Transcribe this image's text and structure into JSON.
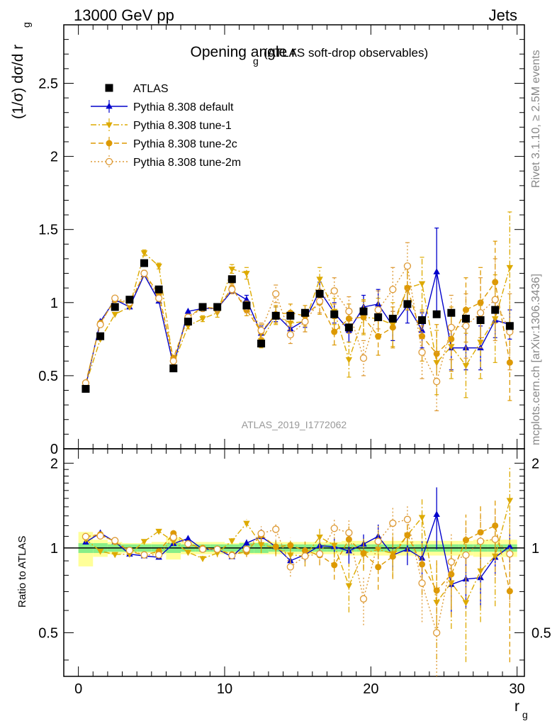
{
  "header": {
    "left": "13000 GeV pp",
    "right": "Jets"
  },
  "side": {
    "top": "Rivet 3.1.10, ≥ 2.5M events",
    "bottom": "mcplots.cern.ch [arXiv:1306.3436]"
  },
  "chart_data": {
    "type": "scatter",
    "title": "Opening angle r",
    "title_sub": "g",
    "title_suffix": "(ATLAS soft-drop observables)",
    "ylabel": "(1/σ) dσ/d r",
    "ylabel_sub": "g",
    "ratio_ylabel": "Ratio to ATLAS",
    "xlabel": "r",
    "xlabel_sub": "g",
    "analysis_tag": "ATLAS_2019_I1772062",
    "xlim": [
      -1,
      30.5
    ],
    "ylim": [
      0,
      2.9
    ],
    "ratio_ylim": [
      0.35,
      2.25
    ],
    "x_ticks": [
      0,
      10,
      20,
      30
    ],
    "x_tick_labels": [
      "0",
      "10",
      "20",
      "30"
    ],
    "y_ticks": [
      0,
      0.5,
      1,
      1.5,
      2,
      2.5
    ],
    "y_tick_labels": [
      "0",
      "0.5",
      "1",
      "1.5",
      "2",
      "2.5"
    ],
    "ratio_y_ticks": [
      0.5,
      1,
      2
    ],
    "ratio_y_tick_labels": [
      "0.5",
      "1",
      "2"
    ],
    "x": [
      0.5,
      1.5,
      2.5,
      3.5,
      4.5,
      5.5,
      6.5,
      7.5,
      8.5,
      9.5,
      10.5,
      11.5,
      12.5,
      13.5,
      14.5,
      15.5,
      16.5,
      17.5,
      18.5,
      19.5,
      20.5,
      21.5,
      22.5,
      23.5,
      24.5,
      25.5,
      26.5,
      27.5,
      28.5,
      29.5
    ],
    "band_inner": [
      0.04,
      0.04,
      0.03,
      0.03,
      0.03,
      0.03,
      0.04,
      0.03,
      0.03,
      0.03,
      0.03,
      0.04,
      0.04,
      0.03,
      0.03,
      0.03,
      0.03,
      0.03,
      0.03,
      0.03,
      0.03,
      0.03,
      0.03,
      0.03,
      0.03,
      0.03,
      0.03,
      0.03,
      0.03,
      0.03
    ],
    "band_outer": [
      0.14,
      0.07,
      0.05,
      0.04,
      0.04,
      0.05,
      0.09,
      0.05,
      0.05,
      0.05,
      0.04,
      0.05,
      0.05,
      0.05,
      0.05,
      0.05,
      0.05,
      0.05,
      0.06,
      0.06,
      0.06,
      0.06,
      0.06,
      0.06,
      0.06,
      0.06,
      0.06,
      0.07,
      0.07,
      0.07
    ],
    "series": [
      {
        "name": "ATLAS",
        "color": "#000000",
        "marker": "square",
        "line": "none",
        "y": [
          0.41,
          0.77,
          0.97,
          1.02,
          1.27,
          1.09,
          0.55,
          0.87,
          0.97,
          0.97,
          1.16,
          0.98,
          0.72,
          0.91,
          0.91,
          0.93,
          1.06,
          0.92,
          0.83,
          0.94,
          0.9,
          0.89,
          0.99,
          0.88,
          0.92,
          0.93,
          0.89,
          0.88,
          0.95,
          0.84
        ],
        "err": [
          0.01,
          0.01,
          0.01,
          0.01,
          0.01,
          0.01,
          0.01,
          0.01,
          0.01,
          0.01,
          0.01,
          0.01,
          0.01,
          0.01,
          0.01,
          0.01,
          0.01,
          0.01,
          0.01,
          0.01,
          0.01,
          0.01,
          0.01,
          0.01,
          0.01,
          0.01,
          0.01,
          0.01,
          0.01,
          0.01
        ]
      },
      {
        "name": "Pythia 8.308 default",
        "color": "#0000cc",
        "marker": "triangle-up",
        "line": "solid",
        "y": [
          0.43,
          0.87,
          1.02,
          0.97,
          1.19,
          1.01,
          0.57,
          0.94,
          0.96,
          0.96,
          1.08,
          1.02,
          0.79,
          0.92,
          0.82,
          0.88,
          1.08,
          0.93,
          0.81,
          0.97,
          0.99,
          0.84,
          0.98,
          0.81,
          1.21,
          0.69,
          0.69,
          0.69,
          0.88,
          0.85
        ],
        "err": [
          0.01,
          0.01,
          0.01,
          0.01,
          0.01,
          0.01,
          0.01,
          0.01,
          0.01,
          0.01,
          0.02,
          0.03,
          0.05,
          0.05,
          0.05,
          0.05,
          0.06,
          0.07,
          0.08,
          0.08,
          0.1,
          0.1,
          0.12,
          0.12,
          0.3,
          0.15,
          0.15,
          0.15,
          0.12,
          0.1
        ]
      },
      {
        "name": "Pythia 8.308 tune-1",
        "color": "#ddaa00",
        "marker": "triangle-down",
        "line": "dashdot",
        "y": [
          0.44,
          0.75,
          0.92,
          0.97,
          1.34,
          1.25,
          0.58,
          0.84,
          0.89,
          0.93,
          1.23,
          1.2,
          0.74,
          0.91,
          0.86,
          0.87,
          1.16,
          0.94,
          0.61,
          0.9,
          0.89,
          0.85,
          1.1,
          1.13,
          0.59,
          0.7,
          0.57,
          0.73,
          0.89,
          1.24
        ],
        "err": [
          0.01,
          0.01,
          0.01,
          0.01,
          0.02,
          0.02,
          0.02,
          0.02,
          0.02,
          0.03,
          0.03,
          0.04,
          0.05,
          0.06,
          0.06,
          0.07,
          0.08,
          0.09,
          0.12,
          0.12,
          0.14,
          0.15,
          0.15,
          0.18,
          0.22,
          0.22,
          0.22,
          0.25,
          0.3,
          0.38
        ]
      },
      {
        "name": "Pythia 8.308 tune-2c",
        "color": "#dd9900",
        "marker": "circle",
        "line": "dashed",
        "y": [
          0.45,
          0.86,
          1.02,
          0.99,
          1.2,
          1.06,
          0.62,
          0.9,
          0.97,
          0.96,
          1.1,
          0.95,
          0.8,
          0.92,
          0.93,
          0.91,
          1.0,
          0.8,
          0.89,
          0.9,
          0.77,
          0.83,
          1.1,
          0.77,
          0.65,
          0.75,
          0.95,
          1.0,
          1.14,
          0.59
        ],
        "err": [
          0.01,
          0.01,
          0.01,
          0.01,
          0.02,
          0.02,
          0.02,
          0.02,
          0.02,
          0.03,
          0.03,
          0.04,
          0.05,
          0.06,
          0.06,
          0.07,
          0.08,
          0.09,
          0.1,
          0.11,
          0.13,
          0.14,
          0.15,
          0.17,
          0.2,
          0.22,
          0.22,
          0.24,
          0.28,
          0.26
        ]
      },
      {
        "name": "Pythia 8.308 tune-2m",
        "color": "#dd9933",
        "marker": "circle-open",
        "line": "dotted",
        "y": [
          0.45,
          0.85,
          1.03,
          1.0,
          1.2,
          1.03,
          0.6,
          0.9,
          0.96,
          0.96,
          1.09,
          0.97,
          0.81,
          1.06,
          0.78,
          0.87,
          1.01,
          1.08,
          0.94,
          0.62,
          0.95,
          1.09,
          1.25,
          0.66,
          0.46,
          0.83,
          0.84,
          0.93,
          1.02,
          0.8
        ],
        "err": [
          0.01,
          0.01,
          0.01,
          0.01,
          0.02,
          0.02,
          0.02,
          0.02,
          0.02,
          0.03,
          0.03,
          0.04,
          0.05,
          0.06,
          0.06,
          0.07,
          0.08,
          0.09,
          0.1,
          0.12,
          0.13,
          0.15,
          0.16,
          0.18,
          0.2,
          0.22,
          0.22,
          0.24,
          0.28,
          0.26
        ]
      }
    ]
  }
}
